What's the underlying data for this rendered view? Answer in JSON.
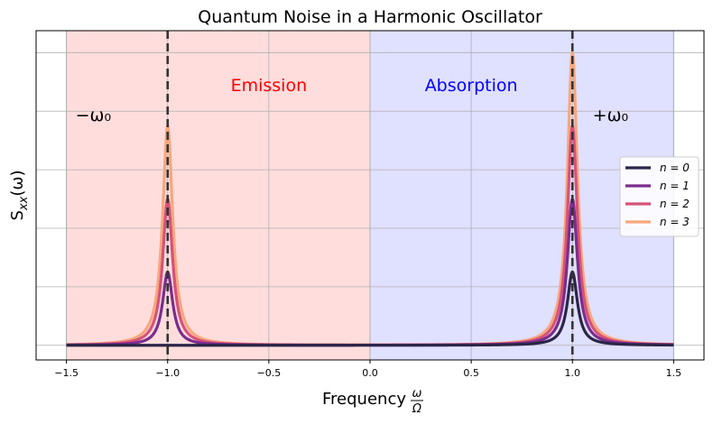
{
  "chart_data": {
    "type": "line",
    "title": "Quantum Noise in a Harmonic Oscillator",
    "xlabel": "Frequency",
    "xlabel_fraction": {
      "numerator": "ω",
      "denominator": "Ω"
    },
    "ylabel": "S_xx(ω)",
    "xlim": [
      -1.65,
      1.65
    ],
    "ylim": [
      -0.2,
      4.3
    ],
    "x_ticks": [
      -1.5,
      -1.0,
      -0.5,
      0.0,
      0.5,
      1.0,
      1.5
    ],
    "x_tick_labels": [
      "−1.5",
      "−1.0",
      "−0.5",
      "0.0",
      "0.5",
      "1.0",
      "1.5"
    ],
    "y_gridlines": [
      0,
      0.8,
      1.6,
      2.4,
      3.2,
      4.0
    ],
    "y_tick_labels": [],
    "grid": true,
    "legend_position": "center-right",
    "regions": [
      {
        "label": "Emission",
        "x_range": [
          -1.5,
          0
        ],
        "fill": "#ffdddd",
        "text_color": "#ff0000"
      },
      {
        "label": "Absorption",
        "x_range": [
          0,
          1.5
        ],
        "fill": "#e0e0ff",
        "text_color": "#0000ff"
      }
    ],
    "vlines": [
      {
        "x": -1.0,
        "label": "−ω₀"
      },
      {
        "x": 1.0,
        "label": "+ω₀"
      }
    ],
    "lorentzian_width": 0.03,
    "series": [
      {
        "name": "n = 0",
        "n": 0,
        "color": "#2b2548",
        "peak_emission": 0.0,
        "peak_absorption": 1.0
      },
      {
        "name": "n = 1",
        "n": 1,
        "color": "#7b2d8b",
        "peak_emission": 1.0,
        "peak_absorption": 2.0
      },
      {
        "name": "n = 2",
        "n": 2,
        "color": "#d6527a",
        "peak_emission": 2.0,
        "peak_absorption": 3.0
      },
      {
        "name": "n = 3",
        "n": 3,
        "color": "#f7a77c",
        "peak_emission": 3.0,
        "peak_absorption": 4.0
      }
    ]
  }
}
